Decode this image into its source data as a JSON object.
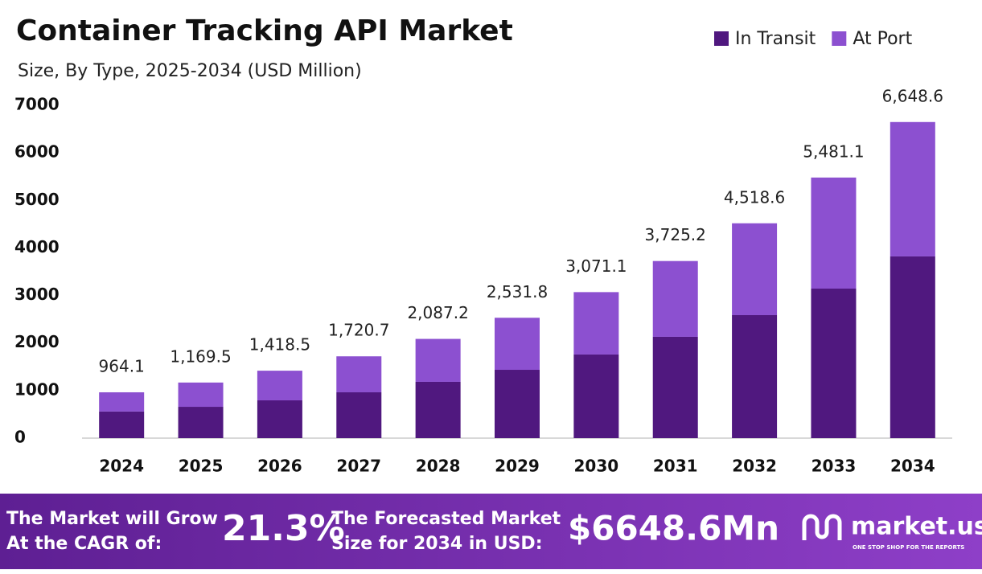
{
  "chart_data": {
    "type": "stacked-bar",
    "title": "Container Tracking API Market",
    "subtitle": "Size, By Type, 2025-2034 (USD Million)",
    "categories": [
      "2024",
      "2025",
      "2026",
      "2027",
      "2028",
      "2029",
      "2030",
      "2031",
      "2032",
      "2033",
      "2034"
    ],
    "series": [
      {
        "name": "In Transit",
        "color": "#50187f",
        "values": [
          560,
          659,
          795,
          964,
          1184,
          1437,
          1759,
          2131,
          2587,
          3145,
          3822
        ]
      },
      {
        "name": "At Port",
        "color": "#8c50d0",
        "values": [
          404.1,
          510.5,
          623.5,
          756.7,
          903.2,
          1094.8,
          1312.1,
          1594.2,
          1931.6,
          2336.1,
          2826.6
        ]
      }
    ],
    "totals": {
      "values": [
        964.1,
        1169.5,
        1418.5,
        1720.7,
        2087.2,
        2531.8,
        3071.1,
        3725.2,
        4518.6,
        5481.1,
        6648.6
      ],
      "value_labels": [
        "964.1",
        "1,169.5",
        "1,418.5",
        "1,720.7",
        "2,087.2",
        "2,531.8",
        "3,071.1",
        "3,725.2",
        "4,518.6",
        "5,481.1",
        "6,648.6"
      ]
    },
    "ylim": [
      0,
      7000
    ],
    "yticks": [
      0,
      1000,
      2000,
      3000,
      4000,
      5000,
      6000,
      7000
    ],
    "grid": false,
    "legend": "top-right"
  },
  "footer": {
    "cagr_text": [
      "The Market will Grow",
      "At the CAGR of:"
    ],
    "cagr": "21.3%",
    "forecast_text": [
      "The Forecasted Market",
      "Size for 2034 in USD:"
    ],
    "forecast": "$6648.6Mn",
    "brand": "market.us",
    "tagline": "ONE STOP SHOP FOR THE REPORTS"
  }
}
